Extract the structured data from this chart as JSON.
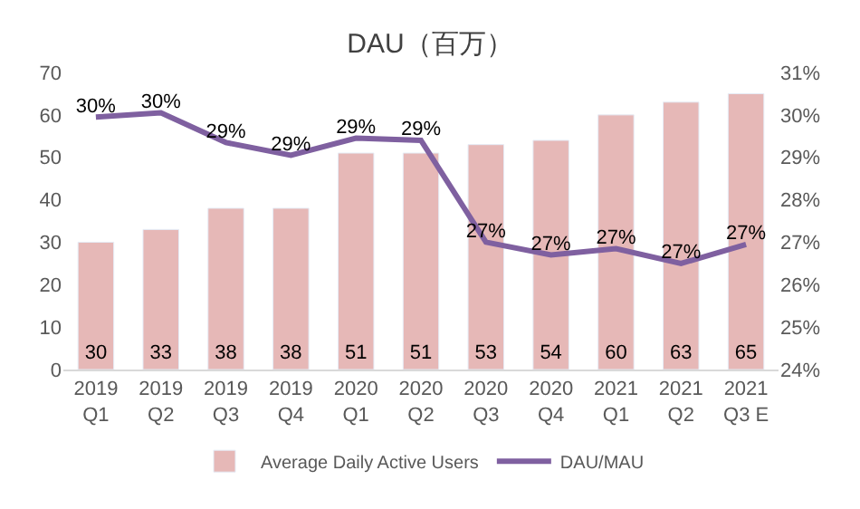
{
  "chart_data": {
    "type": "bar",
    "title": "DAU（百万）",
    "categories": [
      "2019\nQ1",
      "2019\nQ2",
      "2019\nQ3",
      "2019\nQ4",
      "2020\nQ1",
      "2020\nQ2",
      "2020\nQ3",
      "2020\nQ4",
      "2021\nQ1",
      "2021\nQ2",
      "2021\nQ3 E"
    ],
    "series": [
      {
        "name": "Average Daily Active Users",
        "color": "#e6b8b7",
        "values": [
          30,
          33,
          38,
          38,
          51,
          51,
          53,
          54,
          60,
          63,
          65
        ],
        "value_labels": [
          "30",
          "33",
          "38",
          "38",
          "51",
          "51",
          "53",
          "54",
          "60",
          "63",
          "65"
        ]
      },
      {
        "name": "DAU/MAU",
        "type": "line",
        "axis": "y2",
        "color": "#7f60a0",
        "values": [
          29.95,
          30.05,
          29.35,
          29.05,
          29.45,
          29.4,
          27.0,
          26.7,
          26.85,
          26.5,
          26.95
        ],
        "value_labels": [
          "30%",
          "30%",
          "29%",
          "29%",
          "29%",
          "29%",
          "27%",
          "27%",
          "27%",
          "27%",
          "27%"
        ]
      }
    ],
    "ylim": [
      0,
      70
    ],
    "yticks": [
      0,
      10,
      20,
      30,
      40,
      50,
      60,
      70
    ],
    "y2lim": [
      24,
      31
    ],
    "y2ticks": [
      {
        "value": 24,
        "label": "24%"
      },
      {
        "value": 25,
        "label": "25%"
      },
      {
        "value": 26,
        "label": "26%"
      },
      {
        "value": 27,
        "label": "27%"
      },
      {
        "value": 28,
        "label": "28%"
      },
      {
        "value": 29,
        "label": "29%"
      },
      {
        "value": 30,
        "label": "30%"
      },
      {
        "value": 31,
        "label": "31%"
      }
    ],
    "grid": false,
    "legend": "bottom",
    "marker": "none",
    "line_style": "solid"
  }
}
